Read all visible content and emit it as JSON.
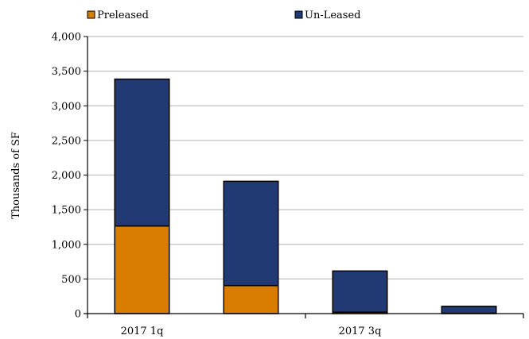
{
  "chart_data": {
    "type": "bar",
    "stacked": true,
    "categories": [
      "2017 1q",
      "",
      "2017 3q",
      ""
    ],
    "series": [
      {
        "name": "Preleased",
        "values": [
          1265,
          405,
          20,
          5
        ],
        "color": "#d97d00"
      },
      {
        "name": "Un-Leased",
        "values": [
          2120,
          1505,
          595,
          100
        ],
        "color": "#213a73"
      }
    ],
    "ylabel": "Thousands of SF",
    "ylim": [
      0,
      4000
    ],
    "yticks": [
      "0",
      "500",
      "1,000",
      "1,500",
      "2,000",
      "2,500",
      "3,000",
      "3,500",
      "4,000"
    ],
    "ytick_values": [
      0,
      500,
      1000,
      1500,
      2000,
      2500,
      3000,
      3500,
      4000
    ],
    "grid": true,
    "legend_position": "top"
  }
}
